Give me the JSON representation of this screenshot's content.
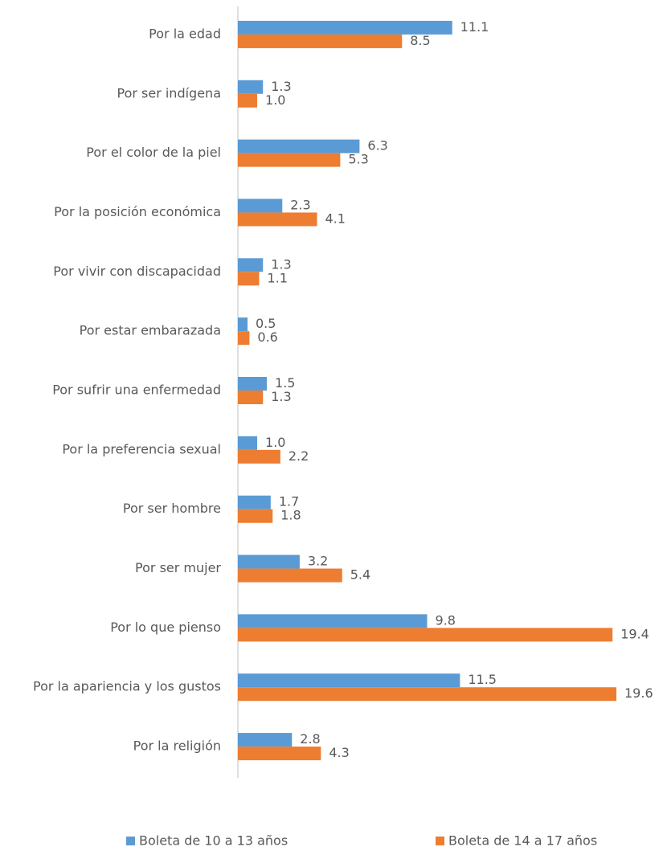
{
  "chart_data": {
    "type": "bar",
    "orientation": "horizontal",
    "categories": [
      "Por la edad",
      "Por ser indígena",
      "Por el color de la piel",
      "Por la posición económica",
      "Por vivir con discapacidad",
      "Por estar embarazada",
      "Por sufrir una enfermedad",
      "Por la preferencia sexual",
      "Por ser hombre",
      "Por ser mujer",
      "Por lo que pienso",
      "Por la apariencia y los gustos",
      "Por la religión"
    ],
    "series": [
      {
        "name": "Boleta de 10 a 13 años",
        "color": "#5b9bd5",
        "values": [
          11.1,
          1.3,
          6.3,
          2.3,
          1.3,
          0.5,
          1.5,
          1.0,
          1.7,
          3.2,
          9.8,
          11.5,
          2.8
        ],
        "value_labels": [
          "11.1",
          "1.3",
          "6.3",
          "2.3",
          "1.3",
          "0.5",
          "1.5",
          "1.0",
          "1.7",
          "3.2",
          "9.8",
          "11.5",
          "2.8"
        ]
      },
      {
        "name": "Boleta de 14 a 17 años",
        "color": "#ed7d31",
        "values": [
          8.5,
          1.0,
          5.3,
          4.1,
          1.1,
          0.6,
          1.3,
          2.2,
          1.8,
          5.4,
          19.4,
          19.6,
          4.3
        ],
        "value_labels": [
          "8.5",
          "1.0",
          "5.3",
          "4.1",
          "1.1",
          "0.6",
          "1.3",
          "2.2",
          "1.8",
          "5.4",
          "19.4",
          "19.6",
          "4.3"
        ]
      }
    ],
    "legend": "bottom"
  }
}
